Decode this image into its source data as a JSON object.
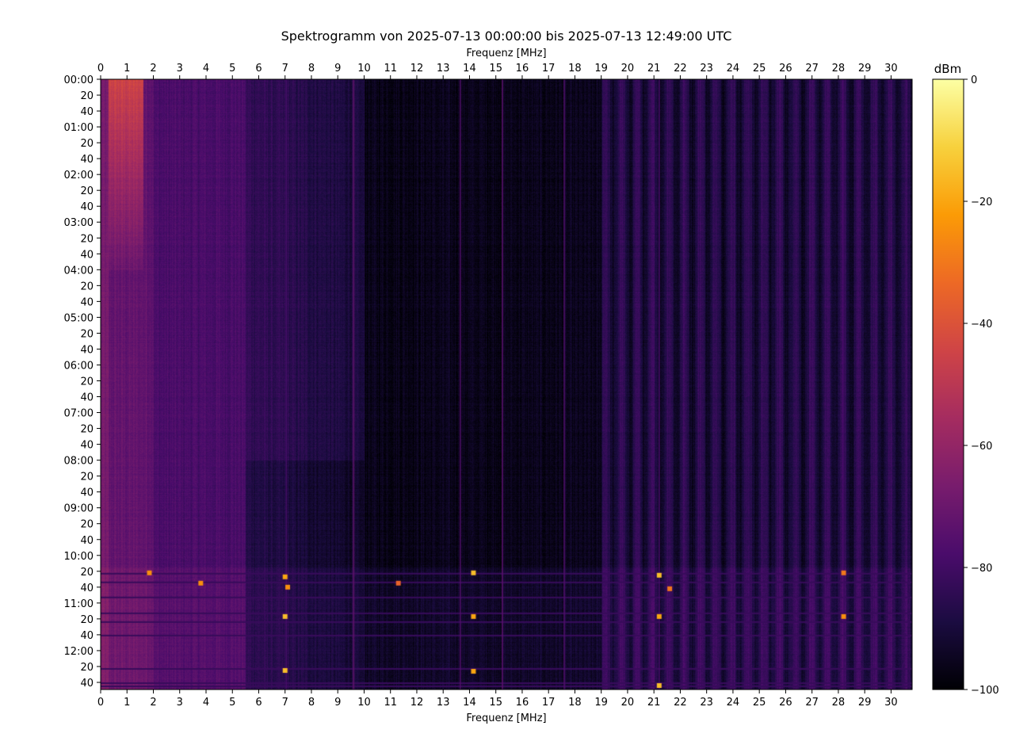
{
  "chart_data": {
    "type": "heatmap",
    "title": "Spektrogramm von 2025-07-13 00:00:00 bis 2025-07-13 12:49:00 UTC",
    "xlabel": "Frequenz [MHz]",
    "xlim": [
      0,
      30.8
    ],
    "x_ticks": [
      "0",
      "1",
      "2",
      "3",
      "4",
      "5",
      "6",
      "7",
      "8",
      "9",
      "10",
      "11",
      "12",
      "13",
      "14",
      "15",
      "16",
      "17",
      "18",
      "19",
      "20",
      "21",
      "22",
      "23",
      "24",
      "25",
      "26",
      "27",
      "28",
      "29",
      "30"
    ],
    "ylim_minutes": [
      0,
      769
    ],
    "y_ticks": [
      "00:00",
      "20",
      "40",
      "01:00",
      "20",
      "40",
      "02:00",
      "20",
      "40",
      "03:00",
      "20",
      "40",
      "04:00",
      "20",
      "40",
      "05:00",
      "20",
      "40",
      "06:00",
      "20",
      "40",
      "07:00",
      "20",
      "40",
      "08:00",
      "20",
      "40",
      "09:00",
      "20",
      "40",
      "10:00",
      "20",
      "40",
      "11:00",
      "20",
      "40",
      "12:00",
      "20",
      "40"
    ],
    "colorbar": {
      "label": "dBm",
      "range": [
        -100,
        0
      ],
      "ticks": [
        "0",
        "−20",
        "−40",
        "−60",
        "−80",
        "−100"
      ],
      "colormap": [
        "#000004",
        "#1b0c41",
        "#4a0c6b",
        "#781c6d",
        "#a52c60",
        "#cf4446",
        "#ed6925",
        "#fb9b06",
        "#f7d13d",
        "#fcffa4"
      ]
    },
    "features": {
      "low_band_hot": {
        "freq_mhz": [
          0.3,
          1.6
        ],
        "time_min": [
          0,
          240
        ],
        "dbm": -45
      },
      "dark_band": {
        "freq_mhz": [
          10,
          19
        ],
        "dbm": -97
      },
      "periodic_stripes": {
        "freq_mhz": [
          19,
          30.8
        ],
        "period_mhz": 0.6,
        "dbm_range": [
          -90,
          -80
        ]
      },
      "interference_rows_min": [
        622,
        633,
        652,
        672,
        683,
        700,
        742,
        760,
        764
      ],
      "carriers": [
        {
          "freq": 7.05,
          "dbm": -78
        },
        {
          "freq": 9.6,
          "dbm": -72
        },
        {
          "freq": 13.65,
          "dbm": -76
        },
        {
          "freq": 15.25,
          "dbm": -74
        },
        {
          "freq": 17.6,
          "dbm": -76
        },
        {
          "freq": 21.2,
          "dbm": -78
        },
        {
          "freq": 28.2,
          "dbm": -80
        }
      ],
      "bursts": [
        {
          "freq": 7.0,
          "time_min": 627,
          "dbm": -20
        },
        {
          "freq": 7.0,
          "time_min": 677,
          "dbm": -15
        },
        {
          "freq": 7.0,
          "time_min": 745,
          "dbm": -15
        },
        {
          "freq": 14.15,
          "time_min": 622,
          "dbm": -15
        },
        {
          "freq": 14.15,
          "time_min": 677,
          "dbm": -20
        },
        {
          "freq": 14.15,
          "time_min": 746,
          "dbm": -20
        },
        {
          "freq": 21.2,
          "time_min": 625,
          "dbm": -15
        },
        {
          "freq": 21.2,
          "time_min": 677,
          "dbm": -20
        },
        {
          "freq": 21.2,
          "time_min": 764,
          "dbm": -15
        },
        {
          "freq": 28.2,
          "time_min": 622,
          "dbm": -30
        },
        {
          "freq": 28.2,
          "time_min": 677,
          "dbm": -25
        },
        {
          "freq": 3.8,
          "time_min": 635,
          "dbm": -25
        },
        {
          "freq": 1.85,
          "time_min": 622,
          "dbm": -25
        },
        {
          "freq": 7.1,
          "time_min": 640,
          "dbm": -25
        },
        {
          "freq": 21.6,
          "time_min": 642,
          "dbm": -30
        },
        {
          "freq": 11.3,
          "time_min": 635,
          "dbm": -35
        }
      ]
    }
  }
}
